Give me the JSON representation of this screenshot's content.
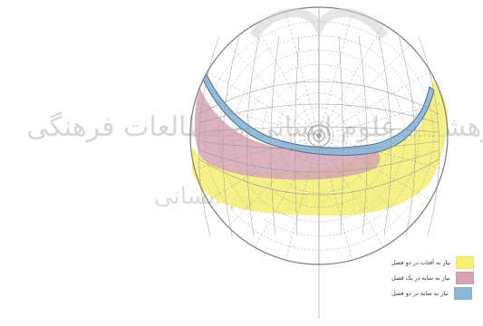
{
  "diagram": {
    "type": "sun-path-shading-diagram",
    "watermark": {
      "line1": "پژوهشگاه علوم انسانی و مطالعات فرهنگی",
      "line2": "پرتال جامع علوم انسانی"
    },
    "zones": [
      {
        "id": "sun-two-seasons",
        "label": "نیاز به آفتاب در دو فصل",
        "color": "#f5ef72"
      },
      {
        "id": "shade-one-season",
        "label": "نیاز به سایه در یک فصل",
        "color": "#d6a4b4"
      },
      {
        "id": "shade-two-seasons",
        "label": "نیاز به سایه در دو فصل",
        "color": "#8fb8d8"
      }
    ],
    "colors": {
      "grid": "#9a9a9a",
      "circle": "#7d7d7d",
      "watermark": "#d9d9d9"
    }
  }
}
